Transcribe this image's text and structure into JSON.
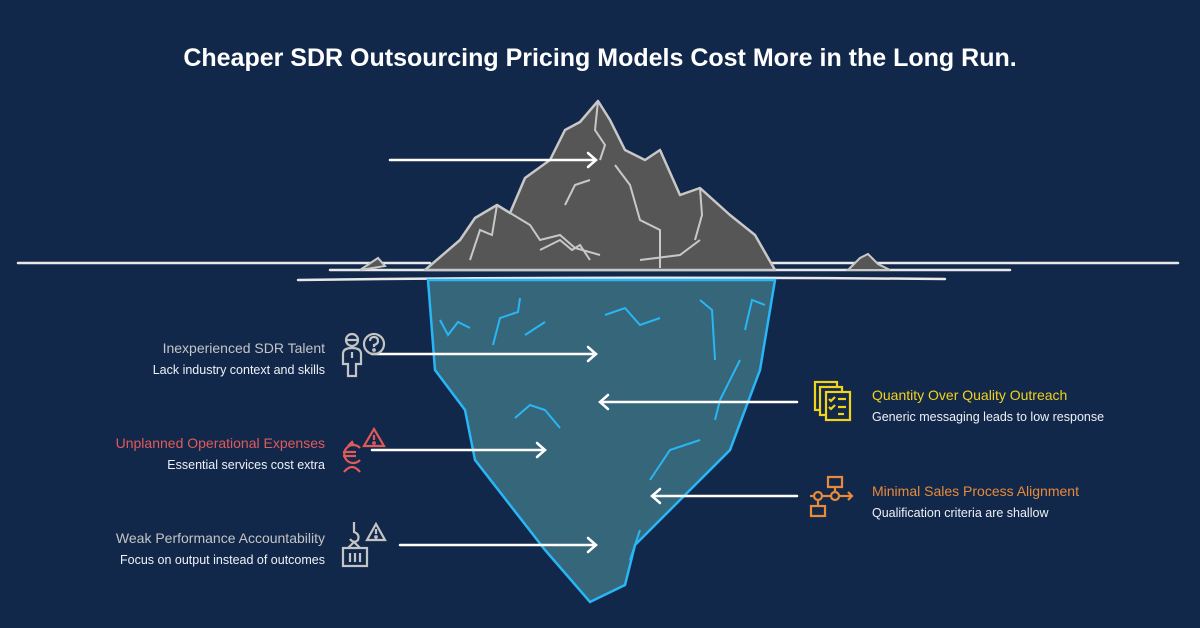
{
  "title": "Cheaper SDR Outsourcing Pricing Models Cost More in the Long Run.",
  "colors": {
    "background": "#12284b",
    "iceberg_top": "#565656",
    "iceberg_under": "#35667a",
    "iceberg_under_stroke": "#29b6f6",
    "gray_label": "#c4c4c4",
    "red_label": "#e15a5a",
    "yellow_label": "#f2d21b",
    "orange_label": "#e88a3a"
  },
  "left_items": [
    {
      "heading": "Inexperienced SDR Talent",
      "sub": "Lack industry context and skills",
      "icon": "confused-person-icon"
    },
    {
      "heading": "Unplanned Operational Expenses",
      "sub": "Essential services cost extra",
      "icon": "euro-warning-icon"
    },
    {
      "heading": "Weak Performance Accountability",
      "sub": "Focus on output instead of outcomes",
      "icon": "hook-crate-warning-icon"
    }
  ],
  "right_items": [
    {
      "heading": "Quantity Over Quality Outreach",
      "sub": "Generic messaging leads to low response",
      "icon": "checklist-stack-icon"
    },
    {
      "heading": "Minimal Sales Process Alignment",
      "sub": "Qualification criteria are shallow",
      "icon": "flowchart-icon"
    }
  ]
}
